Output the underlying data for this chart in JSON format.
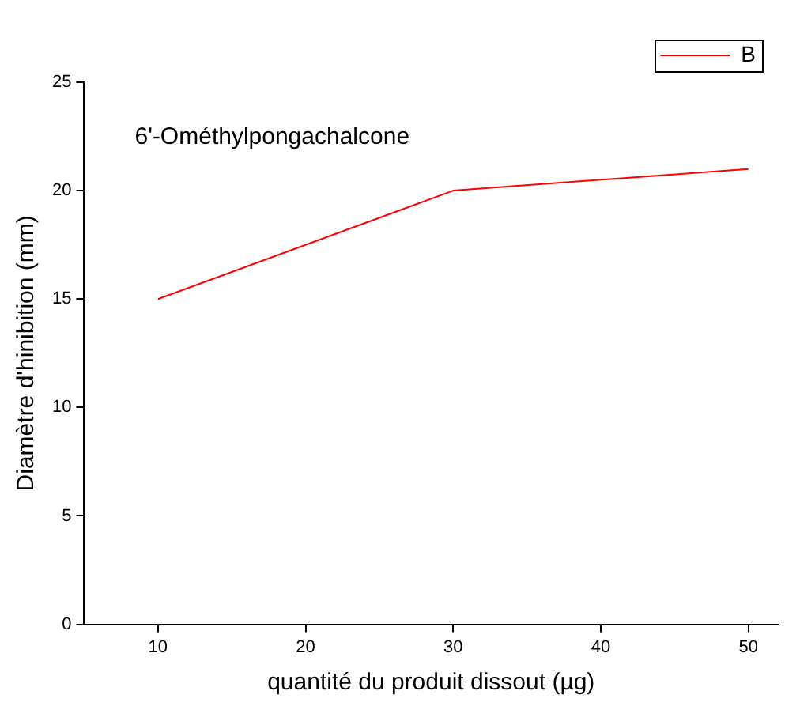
{
  "chart_data": {
    "type": "line",
    "xlabel": "quantité du produit dissout (µg)",
    "ylabel": "Diamètre d'hinibition (mm)",
    "annotations": [
      "6'-Ométhylpongachalcone"
    ],
    "x": [
      10,
      30,
      50
    ],
    "series": [
      {
        "name": "B",
        "color": "#ff0000",
        "values": [
          15,
          20,
          21
        ]
      }
    ],
    "xlim": [
      5,
      52
    ],
    "xticks": [
      10,
      20,
      30,
      40,
      50
    ],
    "ylim": [
      0,
      25
    ],
    "yticks": [
      0,
      5,
      10,
      15,
      20,
      25
    ],
    "grid": false,
    "legend": "top right",
    "marker": "none",
    "line_style": "solid"
  }
}
